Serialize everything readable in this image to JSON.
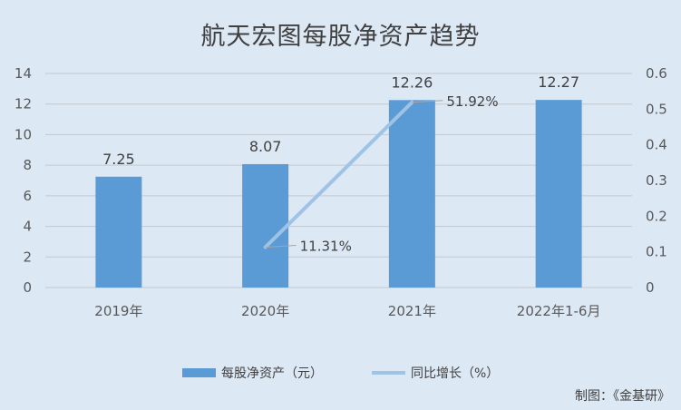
{
  "chart_data": {
    "type": "bar",
    "title": "航天宏图每股净资产趋势",
    "categories": [
      "2019年",
      "2020年",
      "2021年",
      "2022年1-6月"
    ],
    "series": [
      {
        "name": "每股净资产（元）",
        "type": "bar",
        "axis": "left",
        "values": [
          7.25,
          8.07,
          12.26,
          12.27
        ],
        "labels": [
          "7.25",
          "8.07",
          "12.26",
          "12.27"
        ],
        "color": "#5b9bd5"
      },
      {
        "name": "同比增长（%）",
        "type": "line",
        "axis": "right",
        "points": [
          {
            "category": "2020年",
            "value": 0.1131,
            "label": "11.31%"
          },
          {
            "category": "2021年",
            "value": 0.5192,
            "label": "51.92%"
          }
        ],
        "color": "#9dc3e6"
      }
    ],
    "y_left": {
      "min": 0,
      "max": 14,
      "ticks": [
        "0",
        "2",
        "4",
        "6",
        "8",
        "10",
        "12",
        "14"
      ]
    },
    "y_right": {
      "min": 0,
      "max": 0.6,
      "ticks": [
        "0",
        "0.1",
        "0.2",
        "0.3",
        "0.4",
        "0.5",
        "0.6"
      ]
    },
    "grid": true,
    "legend_position": "bottom"
  },
  "credit": "制图：《金基研》"
}
